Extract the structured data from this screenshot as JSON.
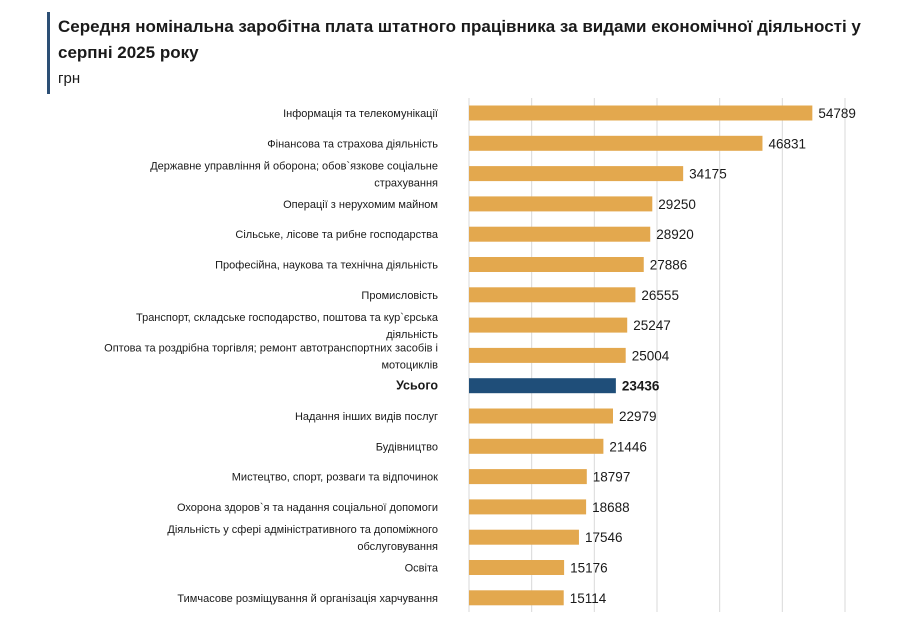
{
  "title": "Середня номінальна заробітна плата штатного працівника за видами економічної діяльності у серпні 2025 року",
  "unit": "грн",
  "colors": {
    "accent": "#2c4f75",
    "bar": "#e3a84e",
    "highlight": "#1f4e79",
    "grid": "#d9d9d9"
  },
  "chart_data": {
    "type": "bar",
    "orientation": "horizontal",
    "title": "Середня номінальна заробітна плата штатного працівника за видами економічної діяльності у серпні 2025 року",
    "ylabel": "",
    "xlabel": "грн",
    "xlim": [
      0,
      60000
    ],
    "grid": true,
    "highlight": "Усього",
    "categories": [
      [
        "Інформація та телекомунікації"
      ],
      [
        "Фінансова та страхова діяльність"
      ],
      [
        "Державне управління й оборона; обов`язкове соціальне",
        "страхування"
      ],
      [
        "Операції з нерухомим майном"
      ],
      [
        "Сільське, лісове та рибне господарства"
      ],
      [
        "Професійна, наукова та технічна діяльність"
      ],
      [
        "Промисловість"
      ],
      [
        "Транспорт, складське господарство, поштова та кур`єрська",
        "діяльність"
      ],
      [
        "Оптова та роздрібна торгівля; ремонт автотранспортних засобів і",
        "мотоциклів"
      ],
      [
        "Усього"
      ],
      [
        "Надання інших видів послуг"
      ],
      [
        "Будівництво"
      ],
      [
        "Мистецтво, спорт, розваги та відпочинок"
      ],
      [
        "Охорона здоров`я та надання соціальної допомоги"
      ],
      [
        "Діяльність у сфері адміністративного та допоміжного",
        "обслуговування"
      ],
      [
        "Освіта"
      ],
      [
        "Тимчасове розміщування й організація харчування"
      ]
    ],
    "values": [
      54789,
      46831,
      34175,
      29250,
      28920,
      27886,
      26555,
      25247,
      25004,
      23436,
      22979,
      21446,
      18797,
      18688,
      17546,
      15176,
      15114
    ]
  }
}
